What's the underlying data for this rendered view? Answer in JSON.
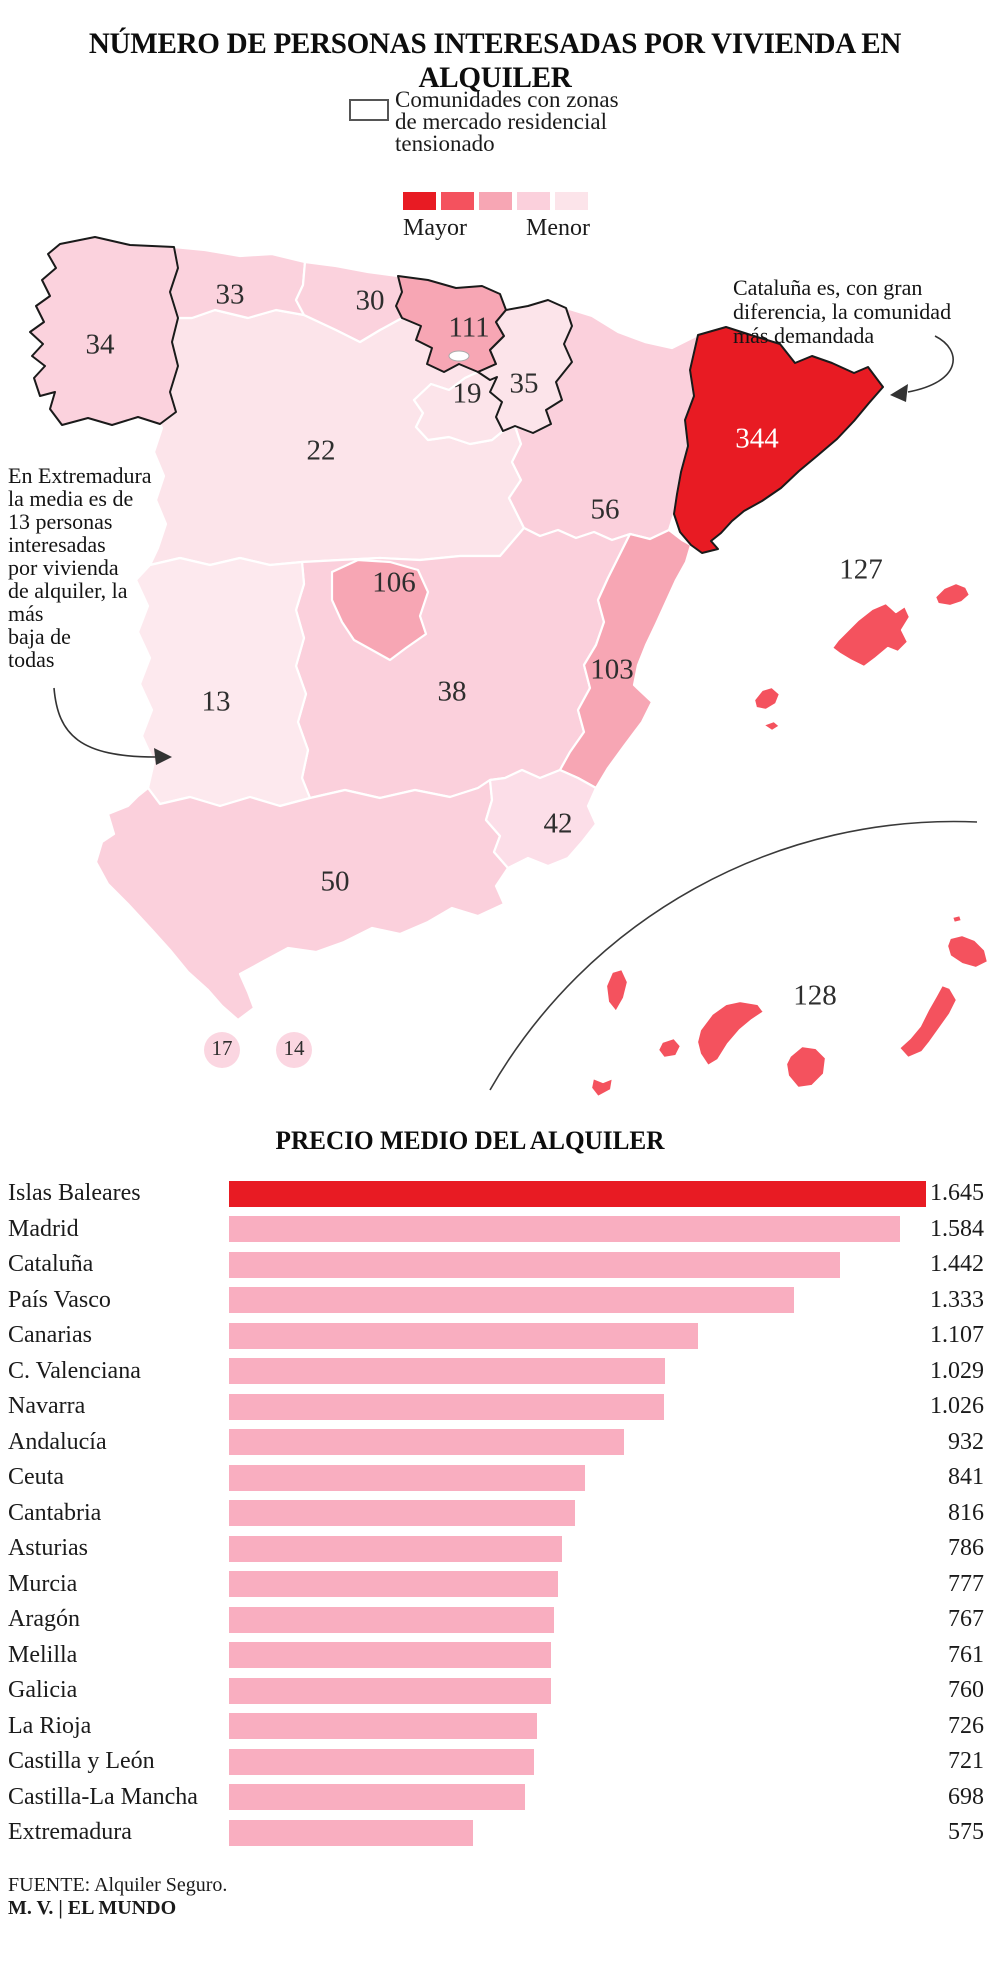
{
  "title": "NÚMERO DE PERSONAS INTERESADAS POR VIVIENDA EN ALQUILER",
  "legend": {
    "box_note_lines": [
      "Comunidades con zonas",
      "de mercado residencial",
      "tensionado"
    ],
    "scale_labels": {
      "high": "Mayor",
      "low": "Menor"
    },
    "scale_colors": [
      "#e81b23",
      "#f4525e",
      "#f7a6b4",
      "#fbd0dc",
      "#fce4ea"
    ]
  },
  "map_notes": {
    "catalunya_lines": [
      "Cataluña es, con gran",
      "diferencia, la comunidad",
      "más demandada"
    ],
    "extremadura_lines": [
      "En Extremadura",
      "la media es de",
      "13 personas",
      "interesadas",
      "por vivienda",
      "de alquiler, la",
      "más",
      "baja de",
      "todas"
    ]
  },
  "chart_data": [
    {
      "type": "choropleth",
      "title": "NÚMERO DE PERSONAS INTERESADAS POR VIVIENDA EN ALQUILER",
      "legend_high": "Mayor",
      "legend_low": "Menor",
      "tensioned_note": "Comunidades con zonas de mercado residencial tensionado",
      "regions": [
        {
          "id": "castilla-y-leon",
          "name": "Castilla y León",
          "value": 22,
          "color": "#fce4ea",
          "tensioned": false
        },
        {
          "id": "aragon",
          "name": "Aragón",
          "value": 56,
          "color": "#fbd0dc",
          "tensioned": false
        },
        {
          "id": "castilla-la-mancha",
          "name": "Castilla-La Mancha",
          "value": 38,
          "color": "#fbd0dc",
          "tensioned": false
        },
        {
          "id": "extremadura",
          "name": "Extremadura",
          "value": 13,
          "color": "#fde9ee",
          "tensioned": false
        },
        {
          "id": "andalucia",
          "name": "Andalucía",
          "value": 50,
          "color": "#fbd0dc",
          "tensioned": false
        },
        {
          "id": "c-valenciana",
          "name": "C. Valenciana",
          "value": 103,
          "color": "#f7a6b4",
          "tensioned": false
        },
        {
          "id": "murcia",
          "name": "Murcia",
          "value": 42,
          "color": "#fcdee8",
          "tensioned": false
        },
        {
          "id": "asturias",
          "name": "Asturias",
          "value": 33,
          "color": "#fbd2dd",
          "tensioned": false
        },
        {
          "id": "cantabria",
          "name": "Cantabria",
          "value": 30,
          "color": "#fbd2dd",
          "tensioned": false
        },
        {
          "id": "la-rioja",
          "name": "La Rioja",
          "value": 19,
          "color": "#fce4ea",
          "tensioned": false
        },
        {
          "id": "madrid",
          "name": "Madrid",
          "value": 106,
          "color": "#f7a6b4",
          "tensioned": false
        },
        {
          "id": "galicia",
          "name": "Galicia",
          "value": 34,
          "color": "#fbd2dd",
          "tensioned": true
        },
        {
          "id": "pais-vasco",
          "name": "País Vasco",
          "value": 111,
          "color": "#f7a6b4",
          "tensioned": true
        },
        {
          "id": "navarra",
          "name": "Navarra",
          "value": 35,
          "color": "#fce4ea",
          "tensioned": true
        },
        {
          "id": "cataluna",
          "name": "Cataluña",
          "value": 344,
          "color": "#e81b23",
          "tensioned": true,
          "label_color": "#ffffff"
        },
        {
          "id": "islas-baleares",
          "name": "Islas Baleares",
          "value": 127,
          "color": "#f4525e",
          "tensioned": false
        },
        {
          "id": "canarias",
          "name": "Canarias",
          "value": 128,
          "color": "#f4525e",
          "tensioned": false
        },
        {
          "id": "ceuta",
          "name": "Ceuta",
          "value": 17,
          "color": "#fbd6e1",
          "tensioned": false
        },
        {
          "id": "melilla",
          "name": "Melilla",
          "value": 14,
          "color": "#fbd6e1",
          "tensioned": false
        }
      ]
    },
    {
      "type": "bar",
      "orientation": "horizontal",
      "title": "PRECIO MEDIO DEL ALQUILER",
      "categories": [
        "Islas Baleares",
        "Madrid",
        "Cataluña",
        "País Vasco",
        "Canarias",
        "C. Valenciana",
        "Navarra",
        "Andalucía",
        "Ceuta",
        "Cantabria",
        "Asturias",
        "Murcia",
        "Aragón",
        "Melilla",
        "Galicia",
        "La Rioja",
        "Castilla y León",
        "Castilla-La Mancha",
        "Extremadura"
      ],
      "values": [
        1645,
        1584,
        1442,
        1333,
        1107,
        1029,
        1026,
        932,
        841,
        816,
        786,
        777,
        767,
        761,
        760,
        726,
        721,
        698,
        575
      ],
      "value_labels": [
        "1.645",
        "1.584",
        "1.442",
        "1.333",
        "1.107",
        "1.029",
        "1.026",
        "932",
        "841",
        "816",
        "786",
        "777",
        "767",
        "761",
        "760",
        "726",
        "721",
        "698",
        "575"
      ],
      "xlim": [
        0,
        1645
      ],
      "bar_color": "#f9aec0",
      "highlight_category": "Islas Baleares",
      "highlight_color": "#e81b23"
    }
  ],
  "footer": {
    "source": "FUENTE: Alquiler Seguro.",
    "credit": "M. V. | EL MUNDO"
  }
}
